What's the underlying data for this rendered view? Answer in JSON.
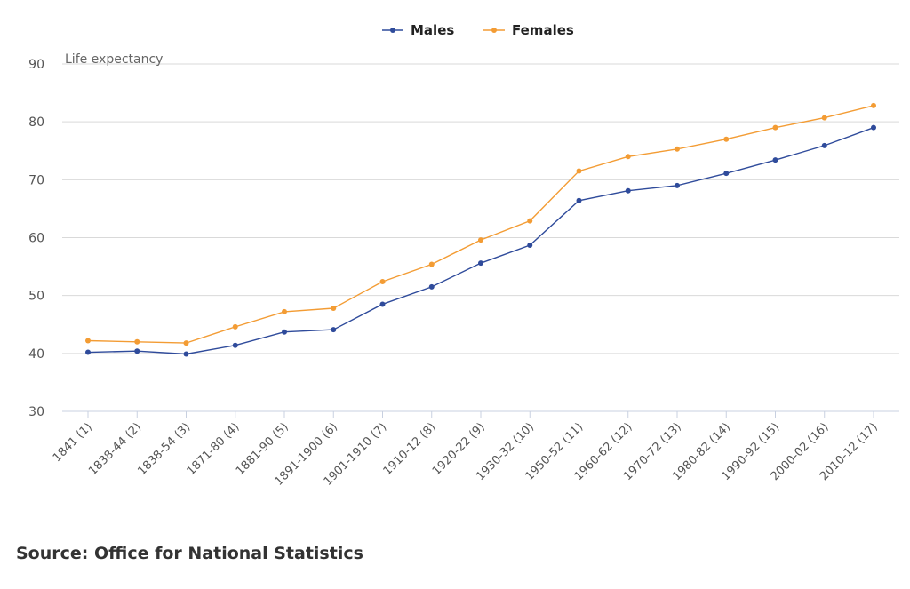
{
  "chart_data": {
    "type": "line",
    "ylabel": "Life expectancy",
    "ylim": [
      30,
      90
    ],
    "yticks": [
      30,
      40,
      50,
      60,
      70,
      80,
      90
    ],
    "grid": true,
    "legend_position": "top-center",
    "categories": [
      "1841 (1)",
      "1838-44 (2)",
      "1838-54 (3)",
      "1871-80 (4)",
      "1881-90 (5)",
      "1891-1900 (6)",
      "1901-1910 (7)",
      "1910-12 (8)",
      "1920-22 (9)",
      "1930-32 (10)",
      "1950-52 (11)",
      "1960-62 (12)",
      "1970-72 (13)",
      "1980-82 (14)",
      "1990-92 (15)",
      "2000-02 (16)",
      "2010-12 (17)"
    ],
    "series": [
      {
        "name": "Males",
        "color": "#2f4b9b",
        "values": [
          40.2,
          40.4,
          39.9,
          41.4,
          43.7,
          44.1,
          48.5,
          51.5,
          55.6,
          58.7,
          66.4,
          68.1,
          69.0,
          71.1,
          73.4,
          75.9,
          79.0
        ]
      },
      {
        "name": "Females",
        "color": "#f39c34",
        "values": [
          42.2,
          42.0,
          41.8,
          44.6,
          47.2,
          47.8,
          52.4,
          55.4,
          59.6,
          62.9,
          71.5,
          74.0,
          75.3,
          77.0,
          79.0,
          80.7,
          82.8
        ]
      }
    ]
  },
  "footer": {
    "source": "Source: Office for National Statistics"
  },
  "colors": {
    "grid": "#d9d9d9",
    "axis": "#c8d0e0",
    "text": "#555555"
  }
}
